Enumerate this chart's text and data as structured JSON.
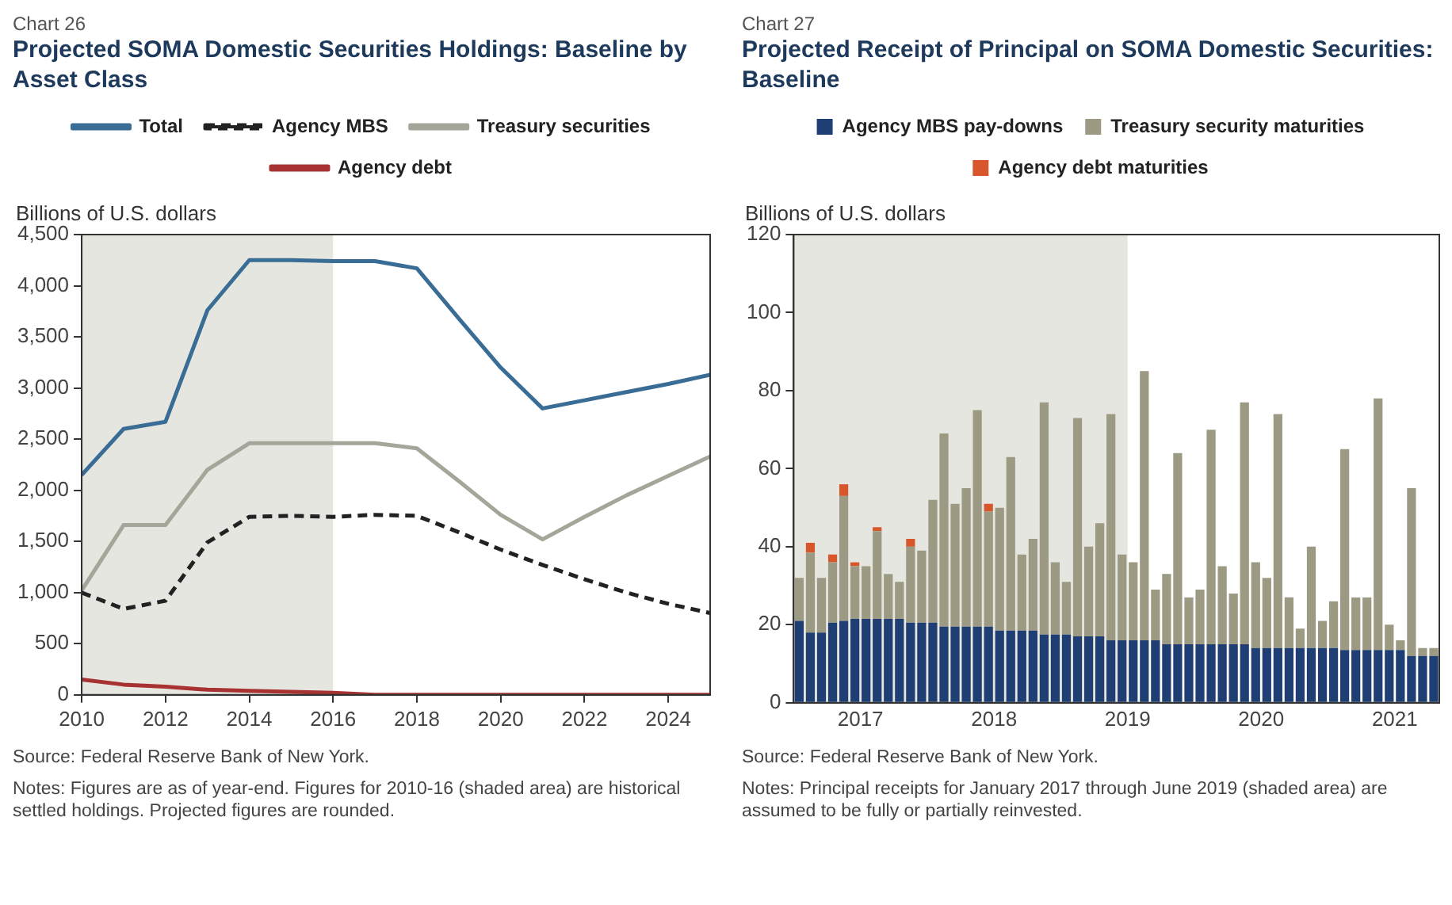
{
  "chart_data": [
    {
      "type": "line",
      "subtitle": "Chart 26",
      "title": "Projected SOMA Domestic Securities Holdings: Baseline by Asset Class",
      "ylabel": "Billions of U.S. dollars",
      "legend": "top",
      "grid": false,
      "marker": "none",
      "x": [
        2010,
        2011,
        2012,
        2013,
        2014,
        2015,
        2016,
        2017,
        2018,
        2019,
        2020,
        2021,
        2022,
        2023,
        2024,
        2025
      ],
      "xlim": [
        2010,
        2025
      ],
      "xticks": [
        2010,
        2012,
        2014,
        2016,
        2018,
        2020,
        2022,
        2024
      ],
      "ylim": [
        0,
        4500
      ],
      "yticks": [
        0,
        500,
        {
          "value": 1000,
          "label": "1,000"
        },
        {
          "value": 1500,
          "label": "1,500"
        },
        {
          "value": 2000,
          "label": "2,000"
        },
        {
          "value": 2500,
          "label": "2,500"
        },
        {
          "value": 3000,
          "label": "3,000"
        },
        {
          "value": 3500,
          "label": "3,500"
        },
        {
          "value": 4000,
          "label": "4,000"
        },
        {
          "value": 4500,
          "label": "4,500"
        }
      ],
      "bands": [
        {
          "axis": "x",
          "from": 2010,
          "to": 2016,
          "color": "#e6e6e0"
        }
      ],
      "series": [
        {
          "name": "Total",
          "color": "#3a6d96",
          "line_style": "solid",
          "values": [
            2150,
            2600,
            2670,
            3760,
            4250,
            4250,
            4240,
            4240,
            4170,
            3680,
            3200,
            2800,
            2880,
            2960,
            3040,
            3130
          ]
        },
        {
          "name": "Agency MBS",
          "color": "#222222",
          "line_style": "dashed",
          "values": [
            1000,
            840,
            920,
            1490,
            1740,
            1750,
            1740,
            1760,
            1750,
            1590,
            1420,
            1270,
            1130,
            1000,
            890,
            800
          ]
        },
        {
          "name": "Treasury securities",
          "color": "#a3a699",
          "line_style": "solid",
          "values": [
            1020,
            1660,
            1660,
            2200,
            2460,
            2460,
            2460,
            2460,
            2410,
            2090,
            1760,
            1520,
            1740,
            1950,
            2140,
            2330
          ]
        },
        {
          "name": "Agency debt",
          "color": "#a83232",
          "line_style": "solid",
          "values": [
            150,
            100,
            80,
            50,
            40,
            30,
            20,
            0,
            0,
            0,
            0,
            0,
            0,
            0,
            0,
            0
          ]
        }
      ],
      "annotations": [
        "Source: Federal Reserve Bank of New York.",
        "Notes: Figures are as of year-end. Figures for 2010-16 (shaded area) are historical settled holdings. Projected figures are rounded."
      ]
    },
    {
      "type": "bar",
      "stacked": true,
      "subtitle": "Chart 27",
      "title": "Projected Receipt of Principal on SOMA Domestic Securities: Baseline",
      "ylabel": "Billions of U.S. dollars",
      "legend": "top",
      "grid": false,
      "x": [
        "2017-01",
        "2017-02",
        "2017-03",
        "2017-04",
        "2017-05",
        "2017-06",
        "2017-07",
        "2017-08",
        "2017-09",
        "2017-10",
        "2017-11",
        "2017-12",
        "2018-01",
        "2018-02",
        "2018-03",
        "2018-04",
        "2018-05",
        "2018-06",
        "2018-07",
        "2018-08",
        "2018-09",
        "2018-10",
        "2018-11",
        "2018-12",
        "2019-01",
        "2019-02",
        "2019-03",
        "2019-04",
        "2019-05",
        "2019-06",
        "2019-07",
        "2019-08",
        "2019-09",
        "2019-10",
        "2019-11",
        "2019-12",
        "2020-01",
        "2020-02",
        "2020-03",
        "2020-04",
        "2020-05",
        "2020-06",
        "2020-07",
        "2020-08",
        "2020-09",
        "2020-10",
        "2020-11",
        "2020-12",
        "2021-01",
        "2021-02",
        "2021-03",
        "2021-04",
        "2021-05",
        "2021-06",
        "2021-07",
        "2021-08",
        "2021-09",
        "2021-10"
      ],
      "xlim": [
        "2017-01-01",
        "2021-11-01"
      ],
      "xticks": [
        {
          "value": "2017-07-01",
          "label": "2017"
        },
        {
          "value": "2018-07-01",
          "label": "2018"
        },
        {
          "value": "2019-07-01",
          "label": "2019"
        },
        {
          "value": "2020-07-01",
          "label": "2020"
        },
        {
          "value": "2021-07-01",
          "label": "2021"
        }
      ],
      "ylim": [
        0,
        120
      ],
      "yticks": [
        0,
        20,
        40,
        60,
        80,
        100,
        120
      ],
      "bands": [
        {
          "axis": "x",
          "from": "2017-01-01",
          "to": "2019-07-01",
          "color": "#e6e6e0"
        }
      ],
      "series": [
        {
          "name": "Agency MBS pay-downs",
          "color": "#1f3e73",
          "values": [
            21,
            18,
            18,
            20.5,
            21,
            21.5,
            21.5,
            21.5,
            21.5,
            21.5,
            20.5,
            20.5,
            20.5,
            19.5,
            19.5,
            19.5,
            19.5,
            19.5,
            18.5,
            18.5,
            18.5,
            18.5,
            17.5,
            17.5,
            17.5,
            17,
            17,
            17,
            16,
            16,
            16,
            16,
            16,
            15,
            15,
            15,
            15,
            15,
            15,
            15,
            15,
            14,
            14,
            14,
            14,
            14,
            14,
            14,
            14,
            13.5,
            13.5,
            13.5,
            13.5,
            13.5,
            13.5,
            12,
            12,
            12
          ]
        },
        {
          "name": "Treasury security maturities",
          "color": "#9c9a83",
          "values": [
            11,
            20.5,
            14,
            15.5,
            32,
            13.5,
            13.5,
            22.5,
            11.5,
            9.5,
            19.5,
            18.5,
            31.5,
            49.5,
            31.5,
            35.5,
            55.5,
            29.5,
            31.5,
            44.5,
            19.5,
            23.5,
            59.5,
            18.5,
            13.5,
            56,
            23,
            29,
            58,
            22,
            20,
            69,
            13,
            18,
            49,
            12,
            14,
            55,
            20,
            13,
            62,
            22,
            18,
            60,
            13,
            5,
            26,
            7,
            12,
            51.5,
            13.5,
            13.5,
            64.5,
            6.5,
            2.5,
            43,
            2,
            2
          ]
        },
        {
          "name": "Agency debt maturities",
          "color": "#d8562c",
          "values": [
            0,
            2.5,
            0,
            2,
            3,
            1,
            0,
            1,
            0,
            0,
            2,
            0,
            0,
            0,
            0,
            0,
            0,
            2,
            0,
            0,
            0,
            0,
            0,
            0,
            0,
            0,
            0,
            0,
            0,
            0,
            0,
            0,
            0,
            0,
            0,
            0,
            0,
            0,
            0,
            0,
            0,
            0,
            0,
            0,
            0,
            0,
            0,
            0,
            0,
            0,
            0,
            0,
            0,
            0,
            0,
            0,
            0,
            0
          ]
        }
      ],
      "annotations": [
        "Source: Federal Reserve Bank of New York.",
        "Notes: Principal receipts for January 2017 through June 2019 (shaded area) are assumed to be fully or partially reinvested."
      ]
    }
  ]
}
